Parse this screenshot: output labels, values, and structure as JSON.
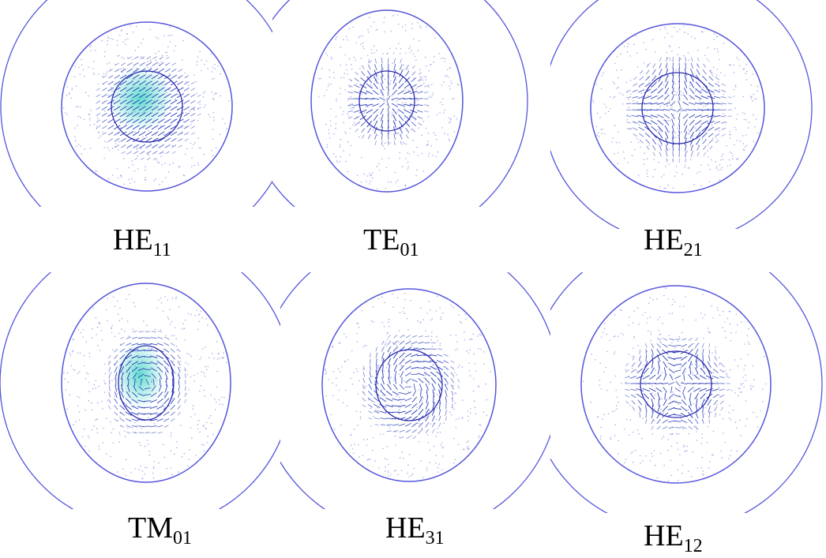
{
  "colors": {
    "ring": "#5555dd",
    "arrow": "#1a2fb0",
    "dot": "#8b8be0",
    "glow": "#2fd0c0"
  },
  "panels": [
    {
      "mode": "HE",
      "sub": "11",
      "pattern": "uniform"
    },
    {
      "mode": "TE",
      "sub": "01",
      "pattern": "radial"
    },
    {
      "mode": "HE",
      "sub": "21",
      "pattern": "hyperbolic"
    },
    {
      "mode": "TM",
      "sub": "01",
      "pattern": "azimuthal"
    },
    {
      "mode": "HE",
      "sub": "31",
      "pattern": "swirl"
    },
    {
      "mode": "HE",
      "sub": "12",
      "pattern": "hexapole"
    }
  ]
}
